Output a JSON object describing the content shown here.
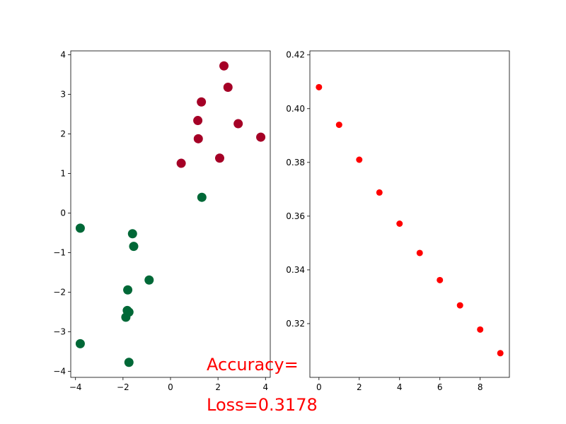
{
  "chart_data": [
    {
      "type": "scatter",
      "xlim": [
        -4.2,
        4.2
      ],
      "ylim": [
        -4.15,
        4.1
      ],
      "xticks": [
        -4,
        -2,
        0,
        2,
        4
      ],
      "yticks": [
        -4,
        -3,
        -2,
        -1,
        0,
        1,
        2,
        3,
        4
      ],
      "series": [
        {
          "color": "#a50026",
          "points": [
            {
              "x": 2.25,
              "y": 3.72
            },
            {
              "x": 2.42,
              "y": 3.18
            },
            {
              "x": 1.3,
              "y": 2.81
            },
            {
              "x": 1.15,
              "y": 2.34
            },
            {
              "x": 2.85,
              "y": 2.26
            },
            {
              "x": 3.8,
              "y": 1.92
            },
            {
              "x": 1.17,
              "y": 1.88
            },
            {
              "x": 2.07,
              "y": 1.39
            },
            {
              "x": 0.45,
              "y": 1.26
            }
          ]
        },
        {
          "color": "#006837",
          "points": [
            {
              "x": 1.32,
              "y": 0.4
            },
            {
              "x": -3.8,
              "y": -0.38
            },
            {
              "x": -1.6,
              "y": -0.52
            },
            {
              "x": -1.55,
              "y": -0.84
            },
            {
              "x": -0.9,
              "y": -1.69
            },
            {
              "x": -1.8,
              "y": -1.94
            },
            {
              "x": -1.82,
              "y": -2.46
            },
            {
              "x": -1.75,
              "y": -2.5
            },
            {
              "x": -1.88,
              "y": -2.63
            },
            {
              "x": -3.8,
              "y": -3.3
            },
            {
              "x": -1.75,
              "y": -3.77
            }
          ]
        }
      ]
    },
    {
      "type": "scatter",
      "color": "#ff0000",
      "xlim": [
        -0.45,
        9.45
      ],
      "ylim": [
        0.3,
        0.4215
      ],
      "xticks": [
        0,
        2,
        4,
        6,
        8
      ],
      "yticks": [
        0.32,
        0.34,
        0.36,
        0.38,
        0.4,
        0.42
      ],
      "ytick_labels": [
        "0.32",
        "0.34",
        "0.36",
        "0.38",
        "0.40",
        "0.42"
      ],
      "x": [
        0,
        1,
        2,
        3,
        4,
        5,
        6,
        7,
        8,
        9
      ],
      "y": [
        0.408,
        0.394,
        0.381,
        0.3688,
        0.3572,
        0.3463,
        0.3362,
        0.3268,
        0.3178,
        0.309
      ]
    }
  ],
  "annotations": {
    "accuracy": "Accuracy=",
    "loss": "Loss=0.3178"
  }
}
